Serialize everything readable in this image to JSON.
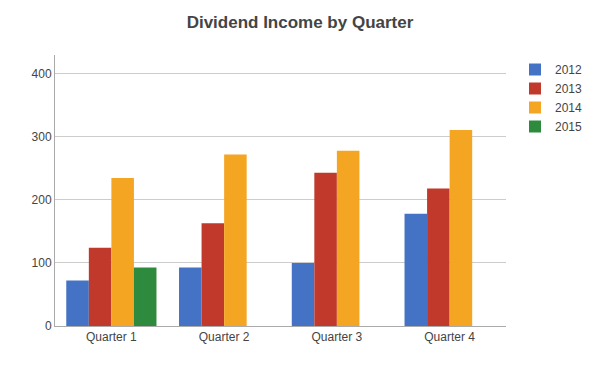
{
  "chart_data": {
    "type": "bar",
    "title": "Dividend Income by Quarter",
    "categories": [
      "Quarter 1",
      "Quarter 2",
      "Quarter 3",
      "Quarter 4"
    ],
    "series": [
      {
        "name": "2012",
        "color": "#4472c4",
        "values": [
          72,
          93,
          100,
          178
        ]
      },
      {
        "name": "2013",
        "color": "#c0392b",
        "values": [
          124,
          163,
          243,
          218
        ]
      },
      {
        "name": "2014",
        "color": "#f4a623",
        "values": [
          235,
          272,
          278,
          311
        ]
      },
      {
        "name": "2015",
        "color": "#2e8b3e",
        "values": [
          93,
          0,
          0,
          0
        ]
      }
    ],
    "ylim": [
      0,
      430
    ],
    "yticks": [
      0,
      100,
      200,
      300,
      400
    ],
    "grid": true,
    "legend": "upper right"
  }
}
